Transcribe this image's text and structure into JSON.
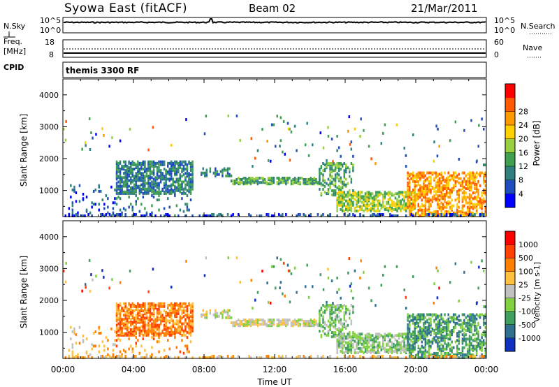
{
  "header": {
    "station": "Syowa East (fitACF)",
    "beam": "Beam 02",
    "date": "21/Mar/2011"
  },
  "noise_panel": {
    "left_label": "N.Sky",
    "right_label": "N.Search",
    "left_ticks": [
      "10^5",
      "10^0"
    ],
    "right_ticks": [
      "10^5",
      "10^0"
    ]
  },
  "freq_panel": {
    "left_label": "Freq.",
    "left_unit": "[MHz]",
    "right_label": "Nave",
    "left_ticks": [
      "18",
      "8"
    ],
    "right_ticks": [
      "60",
      "0"
    ]
  },
  "cpid": {
    "label": "CPID",
    "text": "themis 3300 RF"
  },
  "x_axis": {
    "label": "Time UT",
    "ticks": [
      "00:00",
      "04:00",
      "08:00",
      "12:00",
      "16:00",
      "20:00",
      "00:00"
    ]
  },
  "chart_data": [
    {
      "type": "heatmap",
      "quantity": "Power",
      "ylabel": "Slant Range [km]",
      "yticks": [
        "1000",
        "2000",
        "3000",
        "4000"
      ],
      "ylim": [
        180,
        4500
      ],
      "xlim_hours": [
        0,
        24
      ],
      "colorbar": {
        "label": "Power [dB]",
        "ticks": [
          "4",
          "8",
          "12",
          "16",
          "20",
          "24",
          "28"
        ],
        "colors": [
          "#0000ff",
          "#1f4fbf",
          "#2f7f7f",
          "#3fa050",
          "#9ad040",
          "#ffd000",
          "#ff9900",
          "#ff5a00",
          "#ff0000"
        ]
      },
      "scatter_regions": [
        {
          "hours": [
            0.3,
            3.0
          ],
          "range_km": [
            300,
            1200
          ],
          "level": "low"
        },
        {
          "hours": [
            3.0,
            7.2
          ],
          "range_km": [
            900,
            2000
          ],
          "level": "low-mid"
        },
        {
          "hours": [
            7.8,
            14.5
          ],
          "range_km": [
            1200,
            1600
          ],
          "level": "low"
        },
        {
          "hours": [
            14.5,
            20.0
          ],
          "range_km": [
            400,
            1000
          ],
          "level": "mid"
        },
        {
          "hours": [
            20.0,
            24.0
          ],
          "range_km": [
            200,
            1600
          ],
          "level": "high"
        }
      ]
    },
    {
      "type": "heatmap",
      "quantity": "Velocity",
      "ylabel": "Slant Range [km]",
      "yticks": [
        "1000",
        "2000",
        "3000",
        "4000"
      ],
      "ylim": [
        180,
        4500
      ],
      "xlim_hours": [
        0,
        24
      ],
      "colorbar": {
        "label": "Velocity [m s-1]",
        "ticks": [
          "1000",
          "500",
          "100",
          "25",
          "-25",
          "-100",
          "-500",
          "-1000"
        ],
        "colors": [
          "#1030c0",
          "#2f6f8f",
          "#3f9f5f",
          "#80d040",
          "#c0c0c0",
          "#ffc040",
          "#ff8000",
          "#ff4000",
          "#ff0000"
        ]
      }
    }
  ]
}
